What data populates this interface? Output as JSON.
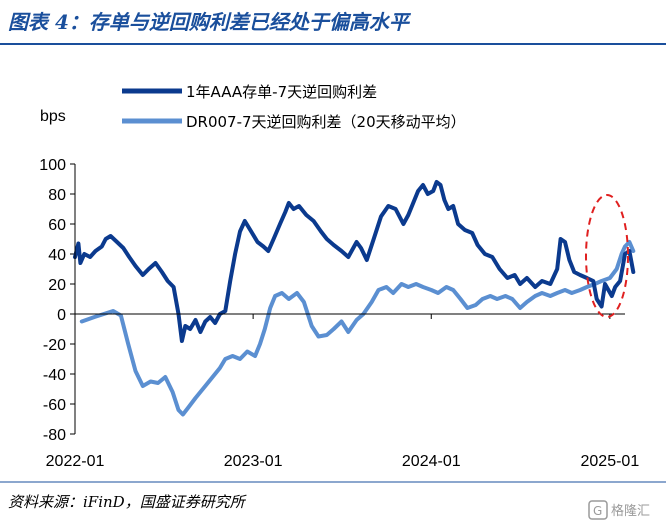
{
  "figure": {
    "title": "图表 4：存单与逆回购利差已经处于偏高水平",
    "source": "资料来源：iFinD，国盛证券研究所",
    "watermark": "格隆汇"
  },
  "colors": {
    "title": "#1a4f9c",
    "series1": "#0b3a8e",
    "series2": "#5b8fd1",
    "highlight": "#e02020",
    "axis": "#000000",
    "rule": "#1a4f9c"
  },
  "chart_data": {
    "type": "line",
    "ylabel": "bps",
    "ylim": [
      -80,
      100
    ],
    "yticks": [
      100,
      80,
      60,
      40,
      20,
      0,
      -20,
      -40,
      -60,
      -80
    ],
    "xlim": [
      "2022-01",
      "2025-02"
    ],
    "xticks": [
      "2022-01",
      "2023-01",
      "2024-01",
      "2025-01"
    ],
    "grid": false,
    "legend_position": "top",
    "annotation": "red dashed ellipse around latest values (early 2025)",
    "series": [
      {
        "name": "1年AAA存单-7天逆回购利差",
        "color": "#0b3a8e",
        "points": [
          [
            "2022-01-01",
            38
          ],
          [
            "2022-01-08",
            47
          ],
          [
            "2022-01-12",
            34
          ],
          [
            "2022-01-20",
            40
          ],
          [
            "2022-02-01",
            38
          ],
          [
            "2022-02-12",
            42
          ],
          [
            "2022-02-25",
            45
          ],
          [
            "2022-03-05",
            50
          ],
          [
            "2022-03-15",
            52
          ],
          [
            "2022-03-28",
            48
          ],
          [
            "2022-04-10",
            44
          ],
          [
            "2022-04-22",
            38
          ],
          [
            "2022-05-05",
            32
          ],
          [
            "2022-05-20",
            26
          ],
          [
            "2022-06-01",
            30
          ],
          [
            "2022-06-15",
            34
          ],
          [
            "2022-06-28",
            28
          ],
          [
            "2022-07-10",
            22
          ],
          [
            "2022-07-22",
            18
          ],
          [
            "2022-08-01",
            0
          ],
          [
            "2022-08-08",
            -18
          ],
          [
            "2022-08-15",
            -8
          ],
          [
            "2022-08-25",
            -10
          ],
          [
            "2022-09-05",
            -4
          ],
          [
            "2022-09-15",
            -12
          ],
          [
            "2022-09-25",
            -5
          ],
          [
            "2022-10-05",
            -2
          ],
          [
            "2022-10-15",
            -6
          ],
          [
            "2022-10-25",
            0
          ],
          [
            "2022-11-05",
            2
          ],
          [
            "2022-11-15",
            22
          ],
          [
            "2022-11-25",
            40
          ],
          [
            "2022-12-05",
            55
          ],
          [
            "2022-12-15",
            62
          ],
          [
            "2022-12-28",
            55
          ],
          [
            "2023-01-10",
            48
          ],
          [
            "2023-01-22",
            45
          ],
          [
            "2023-02-01",
            42
          ],
          [
            "2023-02-12",
            50
          ],
          [
            "2023-02-25",
            60
          ],
          [
            "2023-03-08",
            68
          ],
          [
            "2023-03-15",
            74
          ],
          [
            "2023-03-25",
            70
          ],
          [
            "2023-04-05",
            72
          ],
          [
            "2023-04-20",
            66
          ],
          [
            "2023-05-05",
            62
          ],
          [
            "2023-05-20",
            55
          ],
          [
            "2023-06-01",
            50
          ],
          [
            "2023-06-15",
            46
          ],
          [
            "2023-07-01",
            42
          ],
          [
            "2023-07-15",
            38
          ],
          [
            "2023-08-01",
            48
          ],
          [
            "2023-08-10",
            44
          ],
          [
            "2023-08-22",
            36
          ],
          [
            "2023-09-05",
            50
          ],
          [
            "2023-09-20",
            65
          ],
          [
            "2023-10-05",
            72
          ],
          [
            "2023-10-20",
            70
          ],
          [
            "2023-11-05",
            60
          ],
          [
            "2023-11-15",
            66
          ],
          [
            "2023-11-25",
            74
          ],
          [
            "2023-12-05",
            82
          ],
          [
            "2023-12-15",
            86
          ],
          [
            "2023-12-25",
            80
          ],
          [
            "2024-01-05",
            82
          ],
          [
            "2024-01-12",
            88
          ],
          [
            "2024-01-20",
            86
          ],
          [
            "2024-01-28",
            76
          ],
          [
            "2024-02-05",
            70
          ],
          [
            "2024-02-15",
            72
          ],
          [
            "2024-02-25",
            60
          ],
          [
            "2024-03-10",
            56
          ],
          [
            "2024-03-25",
            54
          ],
          [
            "2024-04-05",
            46
          ],
          [
            "2024-04-20",
            40
          ],
          [
            "2024-05-05",
            38
          ],
          [
            "2024-05-20",
            30
          ],
          [
            "2024-06-05",
            24
          ],
          [
            "2024-06-20",
            26
          ],
          [
            "2024-07-01",
            20
          ],
          [
            "2024-07-15",
            24
          ],
          [
            "2024-08-01",
            18
          ],
          [
            "2024-08-15",
            22
          ],
          [
            "2024-09-01",
            20
          ],
          [
            "2024-09-15",
            30
          ],
          [
            "2024-09-22",
            50
          ],
          [
            "2024-10-01",
            48
          ],
          [
            "2024-10-10",
            36
          ],
          [
            "2024-10-20",
            28
          ],
          [
            "2024-11-01",
            26
          ],
          [
            "2024-11-15",
            24
          ],
          [
            "2024-11-28",
            22
          ],
          [
            "2024-12-05",
            10
          ],
          [
            "2024-12-15",
            5
          ],
          [
            "2024-12-22",
            20
          ],
          [
            "2025-01-05",
            12
          ],
          [
            "2025-01-12",
            18
          ],
          [
            "2025-01-22",
            22
          ],
          [
            "2025-02-01",
            40
          ],
          [
            "2025-02-10",
            42
          ],
          [
            "2025-02-18",
            28
          ]
        ]
      },
      {
        "name": "DR007-7天逆回购利差（20天移动平均）",
        "color": "#5b8fd1",
        "points": [
          [
            "2022-01-15",
            -5
          ],
          [
            "2022-02-10",
            -2
          ],
          [
            "2022-03-01",
            0
          ],
          [
            "2022-03-20",
            2
          ],
          [
            "2022-04-05",
            -1
          ],
          [
            "2022-04-20",
            -20
          ],
          [
            "2022-05-05",
            -38
          ],
          [
            "2022-05-20",
            -48
          ],
          [
            "2022-06-05",
            -45
          ],
          [
            "2022-06-20",
            -46
          ],
          [
            "2022-07-05",
            -42
          ],
          [
            "2022-07-20",
            -52
          ],
          [
            "2022-08-01",
            -64
          ],
          [
            "2022-08-10",
            -67
          ],
          [
            "2022-08-22",
            -62
          ],
          [
            "2022-09-05",
            -56
          ],
          [
            "2022-09-25",
            -48
          ],
          [
            "2022-10-10",
            -42
          ],
          [
            "2022-10-25",
            -36
          ],
          [
            "2022-11-05",
            -30
          ],
          [
            "2022-11-20",
            -28
          ],
          [
            "2022-12-05",
            -30
          ],
          [
            "2022-12-20",
            -25
          ],
          [
            "2023-01-05",
            -28
          ],
          [
            "2023-01-15",
            -20
          ],
          [
            "2023-01-25",
            -10
          ],
          [
            "2023-02-05",
            4
          ],
          [
            "2023-02-15",
            12
          ],
          [
            "2023-03-01",
            14
          ],
          [
            "2023-03-15",
            10
          ],
          [
            "2023-04-01",
            14
          ],
          [
            "2023-04-15",
            8
          ],
          [
            "2023-05-01",
            -8
          ],
          [
            "2023-05-15",
            -15
          ],
          [
            "2023-06-01",
            -14
          ],
          [
            "2023-06-15",
            -10
          ],
          [
            "2023-07-01",
            -5
          ],
          [
            "2023-07-15",
            -12
          ],
          [
            "2023-08-01",
            -4
          ],
          [
            "2023-08-15",
            0
          ],
          [
            "2023-09-01",
            8
          ],
          [
            "2023-09-15",
            16
          ],
          [
            "2023-10-01",
            18
          ],
          [
            "2023-10-15",
            14
          ],
          [
            "2023-11-01",
            20
          ],
          [
            "2023-11-15",
            18
          ],
          [
            "2023-12-01",
            20
          ],
          [
            "2023-12-15",
            18
          ],
          [
            "2024-01-01",
            16
          ],
          [
            "2024-01-15",
            14
          ],
          [
            "2024-02-01",
            18
          ],
          [
            "2024-02-15",
            16
          ],
          [
            "2024-03-01",
            10
          ],
          [
            "2024-03-15",
            4
          ],
          [
            "2024-04-01",
            6
          ],
          [
            "2024-04-15",
            10
          ],
          [
            "2024-05-01",
            12
          ],
          [
            "2024-05-15",
            10
          ],
          [
            "2024-06-01",
            12
          ],
          [
            "2024-06-15",
            10
          ],
          [
            "2024-07-01",
            4
          ],
          [
            "2024-07-15",
            8
          ],
          [
            "2024-08-01",
            12
          ],
          [
            "2024-08-15",
            14
          ],
          [
            "2024-09-01",
            12
          ],
          [
            "2024-09-15",
            14
          ],
          [
            "2024-10-01",
            16
          ],
          [
            "2024-10-15",
            14
          ],
          [
            "2024-11-01",
            16
          ],
          [
            "2024-11-15",
            18
          ],
          [
            "2024-12-01",
            20
          ],
          [
            "2024-12-15",
            22
          ],
          [
            "2025-01-01",
            24
          ],
          [
            "2025-01-15",
            30
          ],
          [
            "2025-01-25",
            40
          ],
          [
            "2025-02-01",
            45
          ],
          [
            "2025-02-10",
            48
          ],
          [
            "2025-02-18",
            42
          ]
        ]
      }
    ]
  }
}
